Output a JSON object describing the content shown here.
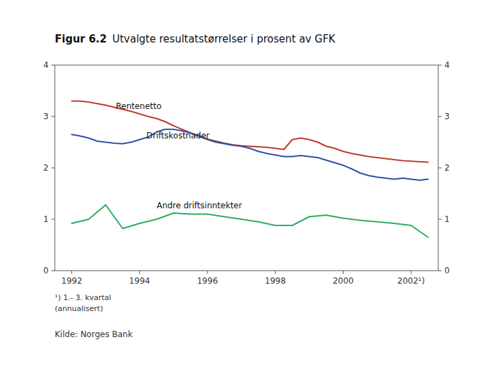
{
  "chart_data": {
    "type": "line",
    "title": "Figur 6.2",
    "subtitle": "Utvalgte resultatstørrelser i prosent av GFK",
    "footnotes": [
      "¹) 1.- 3. kvartal",
      "(annualisert)"
    ],
    "source": "Kilde: Norges Bank",
    "xlim": [
      1991.5,
      2002.8
    ],
    "ylim": [
      0,
      4
    ],
    "yticks": [
      0,
      1,
      2,
      3,
      4
    ],
    "y2lim": [
      0,
      4
    ],
    "y2ticks": [
      0,
      1,
      2,
      3,
      4
    ],
    "xticks": [
      1992,
      1994,
      1996,
      1998,
      2000,
      {
        "value": 2002,
        "label": "2002¹)"
      }
    ],
    "grid": false,
    "series": [
      {
        "name": "Rentenetto",
        "color": "#c0392b",
        "x": [
          1992,
          1992.25,
          1992.5,
          1992.75,
          1993,
          1993.25,
          1993.5,
          1993.75,
          1994,
          1994.25,
          1994.5,
          1994.75,
          1995,
          1995.25,
          1995.5,
          1995.75,
          1996,
          1996.25,
          1996.5,
          1996.75,
          1997,
          1997.25,
          1997.5,
          1997.75,
          1998,
          1998.25,
          1998.5,
          1998.75,
          1999,
          1999.25,
          1999.5,
          1999.75,
          2000,
          2000.25,
          2000.5,
          2000.75,
          2001,
          2001.25,
          2001.5,
          2001.75,
          2002,
          2002.25,
          2002.5
        ],
        "values": [
          3.3,
          3.3,
          3.28,
          3.25,
          3.22,
          3.18,
          3.14,
          3.1,
          3.05,
          3.0,
          2.96,
          2.9,
          2.82,
          2.75,
          2.68,
          2.62,
          2.56,
          2.52,
          2.48,
          2.45,
          2.43,
          2.42,
          2.41,
          2.4,
          2.38,
          2.36,
          2.55,
          2.58,
          2.55,
          2.5,
          2.42,
          2.38,
          2.32,
          2.28,
          2.25,
          2.22,
          2.2,
          2.18,
          2.16,
          2.14,
          2.13,
          2.12,
          2.11
        ]
      },
      {
        "name": "Driftskostnader",
        "color": "#2e4fa3",
        "x": [
          1992,
          1992.25,
          1992.5,
          1992.75,
          1993,
          1993.25,
          1993.5,
          1993.75,
          1994,
          1994.25,
          1994.5,
          1994.75,
          1995,
          1995.25,
          1995.5,
          1995.75,
          1996,
          1996.25,
          1996.5,
          1996.75,
          1997,
          1997.25,
          1997.5,
          1997.75,
          1998,
          1998.25,
          1998.5,
          1998.75,
          1999,
          1999.25,
          1999.5,
          1999.75,
          2000,
          2000.25,
          2000.5,
          2000.75,
          2001,
          2001.25,
          2001.5,
          2001.75,
          2002,
          2002.25,
          2002.5
        ],
        "values": [
          2.65,
          2.62,
          2.58,
          2.52,
          2.5,
          2.48,
          2.47,
          2.5,
          2.55,
          2.6,
          2.7,
          2.75,
          2.75,
          2.72,
          2.68,
          2.62,
          2.55,
          2.5,
          2.47,
          2.44,
          2.42,
          2.38,
          2.32,
          2.28,
          2.25,
          2.22,
          2.22,
          2.24,
          2.22,
          2.2,
          2.15,
          2.1,
          2.05,
          1.98,
          1.9,
          1.85,
          1.82,
          1.8,
          1.78,
          1.8,
          1.78,
          1.76,
          1.78
        ]
      },
      {
        "name": "Andre driftsinntekter",
        "color": "#27ae60",
        "x": [
          1992,
          1992.5,
          1993,
          1993.5,
          1994,
          1994.5,
          1995,
          1995.5,
          1996,
          1996.5,
          1997,
          1997.5,
          1998,
          1998.5,
          1999,
          1999.5,
          2000,
          2000.5,
          2001,
          2001.5,
          2002,
          2002.5
        ],
        "values": [
          0.92,
          1.0,
          1.28,
          0.82,
          0.92,
          1.0,
          1.12,
          1.1,
          1.1,
          1.05,
          1.0,
          0.95,
          0.88,
          0.88,
          1.05,
          1.08,
          1.02,
          0.98,
          0.95,
          0.92,
          0.88,
          0.65
        ]
      }
    ],
    "annotations": [
      {
        "text": "Rentenetto",
        "x": 1993.3,
        "y": 3.15
      },
      {
        "text": "Driftskostnader",
        "x": 1994.2,
        "y": 2.58
      },
      {
        "text": "Andre driftsinntekter",
        "x": 1994.5,
        "y": 1.22
      }
    ]
  }
}
